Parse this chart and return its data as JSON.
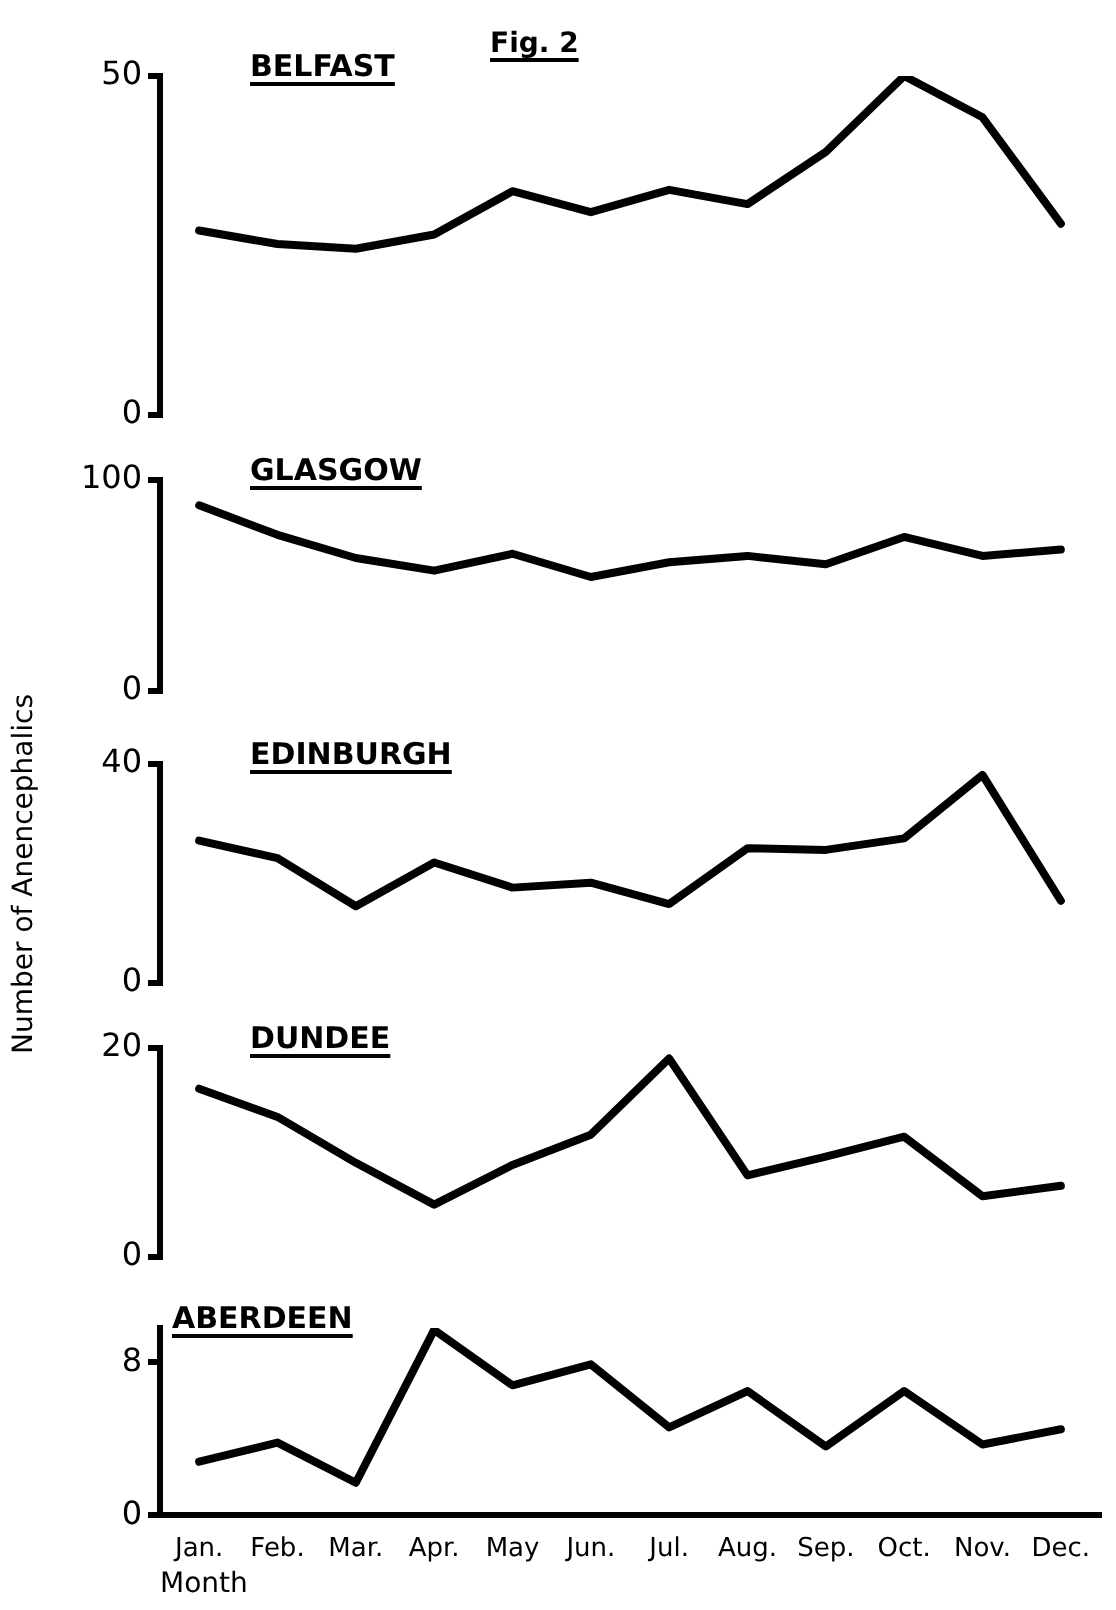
{
  "chart_data": [
    {
      "type": "line",
      "title": "BELFAST",
      "annotations": [
        "Fig. 2"
      ],
      "categories": [
        null,
        null,
        null,
        null,
        null,
        null,
        null,
        null,
        null,
        null,
        null,
        null
      ],
      "ylim": [
        0,
        50
      ],
      "yticks": [
        0,
        50
      ],
      "tick_labels": "y",
      "grid": false,
      "marker": "none",
      "series": [
        {
          "color": "#000000",
          "values": [
            27.2,
            25.2,
            24.5,
            26.6,
            33,
            29.9,
            33.2,
            31.1,
            38.8,
            50,
            43.9,
            28.2
          ]
        }
      ]
    },
    {
      "type": "line",
      "title": "GLASGOW",
      "categories": [
        null,
        null,
        null,
        null,
        null,
        null,
        null,
        null,
        null,
        null,
        null,
        null
      ],
      "ylim": [
        0,
        100
      ],
      "yticks": [
        0,
        100
      ],
      "tick_labels": "y",
      "grid": false,
      "marker": "none",
      "series": [
        {
          "color": "#000000",
          "values": [
            88,
            74,
            63,
            57,
            65,
            54,
            61,
            64,
            60,
            73,
            64,
            67
          ]
        }
      ]
    },
    {
      "type": "line",
      "title": "EDINBURGH",
      "ylabel": "Number of Anencephalics",
      "categories": [
        null,
        null,
        null,
        null,
        null,
        null,
        null,
        null,
        null,
        null,
        null,
        null
      ],
      "ylim": [
        0,
        40
      ],
      "yticks": [
        0,
        40
      ],
      "tick_labels": "y",
      "grid": false,
      "marker": "none",
      "series": [
        {
          "color": "#000000",
          "values": [
            26,
            22.8,
            14,
            22,
            17.4,
            18.3,
            14.4,
            24.6,
            24.3,
            26.4,
            38,
            15
          ]
        }
      ]
    },
    {
      "type": "line",
      "title": "DUNDEE",
      "categories": [
        null,
        null,
        null,
        null,
        null,
        null,
        null,
        null,
        null,
        null,
        null,
        null
      ],
      "ylim": [
        0,
        20
      ],
      "yticks": [
        0,
        20
      ],
      "tick_labels": "y",
      "grid": false,
      "marker": "none",
      "series": [
        {
          "color": "#000000",
          "values": [
            16.1,
            13.4,
            9,
            5,
            8.8,
            11.7,
            19,
            7.8,
            9.6,
            11.5,
            5.8,
            6.8
          ]
        }
      ]
    },
    {
      "type": "line",
      "title": "ABERDEEN",
      "xlabel": "Month",
      "categories": [
        "Jan.",
        "Feb.",
        "Mar.",
        "Apr.",
        "May",
        "Jun.",
        "Jul.",
        "Aug.",
        "Sep.",
        "Oct.",
        "Nov.",
        "Dec."
      ],
      "ylim": [
        0,
        9.8
      ],
      "yticks": [
        0,
        8
      ],
      "grid": false,
      "marker": "none",
      "series": [
        {
          "color": "#000000",
          "values": [
            2.8,
            3.8,
            1.7,
            9.7,
            6.8,
            7.9,
            4.6,
            6.5,
            3.6,
            6.5,
            3.7,
            4.5
          ]
        }
      ]
    }
  ]
}
